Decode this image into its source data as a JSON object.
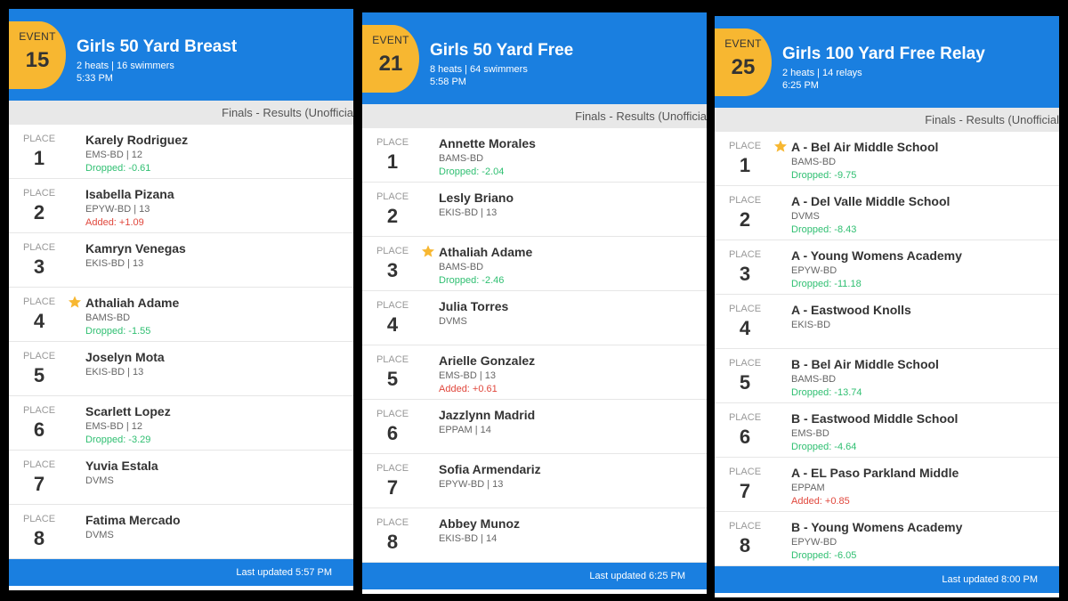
{
  "panels": [
    {
      "event_label": "EVENT",
      "event_number": "15",
      "title": "Girls 50 Yard Breast",
      "heats": "2 heats | 16 swimmers",
      "time": "5:33 PM",
      "section": "Finals - Results (Unofficia",
      "footer": "Last updated 5:57 PM",
      "results": [
        {
          "place_label": "PLACE",
          "place": "1",
          "name": "Karely Rodriguez",
          "team": "EMS-BD | 12",
          "change": {
            "text": "Dropped: -0.61",
            "color": "#2fbf71"
          },
          "starred": false
        },
        {
          "place_label": "PLACE",
          "place": "2",
          "name": "Isabella Pizana",
          "team": "EPYW-BD | 13",
          "change": {
            "text": "Added: +1.09",
            "color": "#e0473c"
          },
          "starred": false
        },
        {
          "place_label": "PLACE",
          "place": "3",
          "name": "Kamryn Venegas",
          "team": "EKIS-BD | 13",
          "starred": false
        },
        {
          "place_label": "PLACE",
          "place": "4",
          "name": "Athaliah Adame",
          "team": "BAMS-BD",
          "change": {
            "text": "Dropped: -1.55",
            "color": "#2fbf71"
          },
          "starred": true
        },
        {
          "place_label": "PLACE",
          "place": "5",
          "name": "Joselyn Mota",
          "team": "EKIS-BD | 13",
          "starred": false
        },
        {
          "place_label": "PLACE",
          "place": "6",
          "name": "Scarlett Lopez",
          "team": "EMS-BD | 12",
          "change": {
            "text": "Dropped: -3.29",
            "color": "#2fbf71"
          },
          "starred": false
        },
        {
          "place_label": "PLACE",
          "place": "7",
          "name": "Yuvia Estala",
          "team": "DVMS",
          "starred": false
        },
        {
          "place_label": "PLACE",
          "place": "8",
          "name": "Fatima Mercado",
          "team": "DVMS",
          "starred": false
        }
      ]
    },
    {
      "event_label": "EVENT",
      "event_number": "21",
      "title": "Girls 50 Yard Free",
      "heats": "8 heats | 64 swimmers",
      "time": "5:58 PM",
      "section": "Finals - Results (Unofficia",
      "footer": "Last updated 6:25 PM",
      "results": [
        {
          "place_label": "PLACE",
          "place": "1",
          "name": "Annette Morales",
          "team": "BAMS-BD",
          "change": {
            "text": "Dropped: -2.04",
            "color": "#2fbf71"
          },
          "starred": false
        },
        {
          "place_label": "PLACE",
          "place": "2",
          "name": "Lesly Briano",
          "team": "EKIS-BD | 13",
          "starred": false
        },
        {
          "place_label": "PLACE",
          "place": "3",
          "name": "Athaliah Adame",
          "team": "BAMS-BD",
          "change": {
            "text": "Dropped: -2.46",
            "color": "#2fbf71"
          },
          "starred": true
        },
        {
          "place_label": "PLACE",
          "place": "4",
          "name": "Julia Torres",
          "team": "DVMS",
          "starred": false
        },
        {
          "place_label": "PLACE",
          "place": "5",
          "name": "Arielle Gonzalez",
          "team": "EMS-BD | 13",
          "change": {
            "text": "Added: +0.61",
            "color": "#e0473c"
          },
          "starred": false
        },
        {
          "place_label": "PLACE",
          "place": "6",
          "name": "Jazzlynn Madrid",
          "team": "EPPAM | 14",
          "starred": false
        },
        {
          "place_label": "PLACE",
          "place": "7",
          "name": "Sofia Armendariz",
          "team": "EPYW-BD | 13",
          "starred": false
        },
        {
          "place_label": "PLACE",
          "place": "8",
          "name": "Abbey Munoz",
          "team": "EKIS-BD | 14",
          "starred": false
        }
      ]
    },
    {
      "event_label": "EVENT",
      "event_number": "25",
      "title": "Girls 100 Yard Free Relay",
      "heats": "2 heats | 14 relays",
      "time": "6:25 PM",
      "section": "Finals - Results (Unofficial",
      "footer": "Last updated 8:00 PM",
      "results": [
        {
          "place_label": "PLACE",
          "place": "1",
          "name": "A - Bel Air Middle School",
          "team": "BAMS-BD",
          "change": {
            "text": "Dropped: -9.75",
            "color": "#2fbf71"
          },
          "starred": true
        },
        {
          "place_label": "PLACE",
          "place": "2",
          "name": "A - Del Valle Middle School",
          "team": "DVMS",
          "change": {
            "text": "Dropped: -8.43",
            "color": "#2fbf71"
          },
          "starred": false
        },
        {
          "place_label": "PLACE",
          "place": "3",
          "name": "A - Young Womens Academy",
          "team": "EPYW-BD",
          "change": {
            "text": "Dropped: -11.18",
            "color": "#2fbf71"
          },
          "starred": false
        },
        {
          "place_label": "PLACE",
          "place": "4",
          "name": "A - Eastwood Knolls",
          "team": "EKIS-BD",
          "starred": false
        },
        {
          "place_label": "PLACE",
          "place": "5",
          "name": "B - Bel Air Middle School",
          "team": "BAMS-BD",
          "change": {
            "text": "Dropped: -13.74",
            "color": "#2fbf71"
          },
          "starred": false
        },
        {
          "place_label": "PLACE",
          "place": "6",
          "name": "B - Eastwood Middle School",
          "team": "EMS-BD",
          "change": {
            "text": "Dropped: -4.64",
            "color": "#2fbf71"
          },
          "starred": false
        },
        {
          "place_label": "PLACE",
          "place": "7",
          "name": "A - EL Paso Parkland Middle",
          "team": "EPPAM",
          "change": {
            "text": "Added: +0.85",
            "color": "#e0473c"
          },
          "starred": false
        },
        {
          "place_label": "PLACE",
          "place": "8",
          "name": "B - Young Womens Academy",
          "team": "EPYW-BD",
          "change": {
            "text": "Dropped: -6.05",
            "color": "#2fbf71"
          },
          "starred": false
        }
      ]
    }
  ]
}
